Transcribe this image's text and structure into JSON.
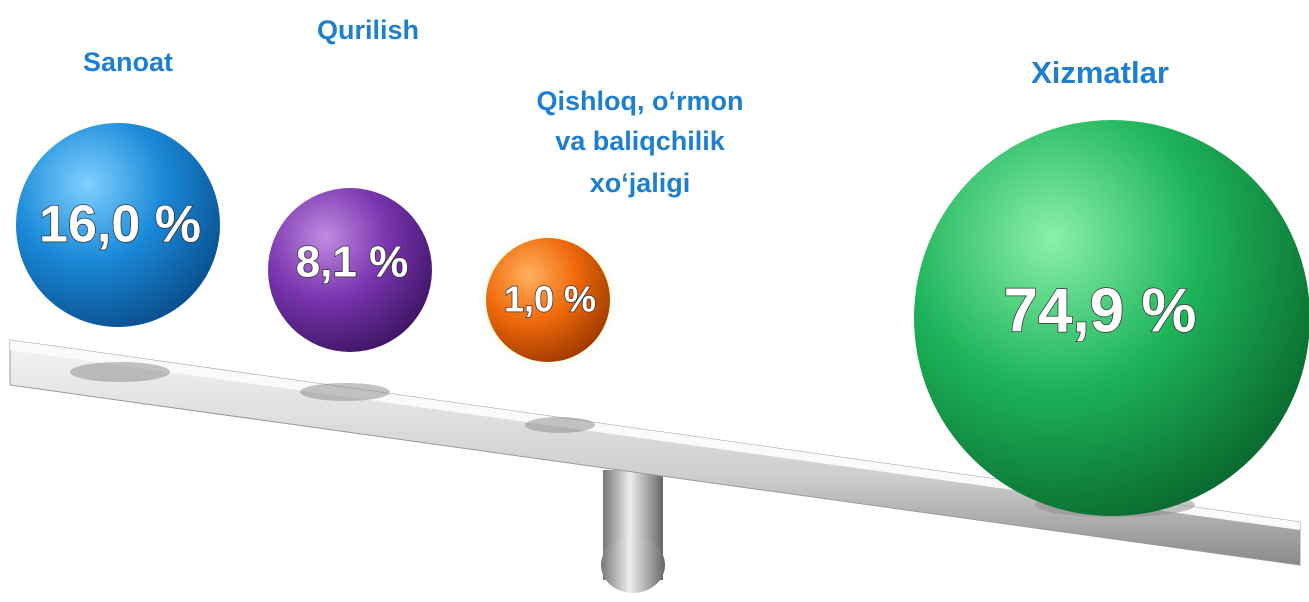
{
  "items": [
    {
      "label": [
        "Sanoat"
      ],
      "value": "16,0 %"
    },
    {
      "label": [
        "Qurilish"
      ],
      "value": "8,1 %"
    },
    {
      "label": [
        "Qishloq, o‘rmon",
        "va baliqchilik",
        "xo‘jaligi"
      ],
      "value": "1,0 %"
    },
    {
      "label": [
        "Xizmatlar"
      ],
      "value": "74,9 %"
    }
  ]
}
